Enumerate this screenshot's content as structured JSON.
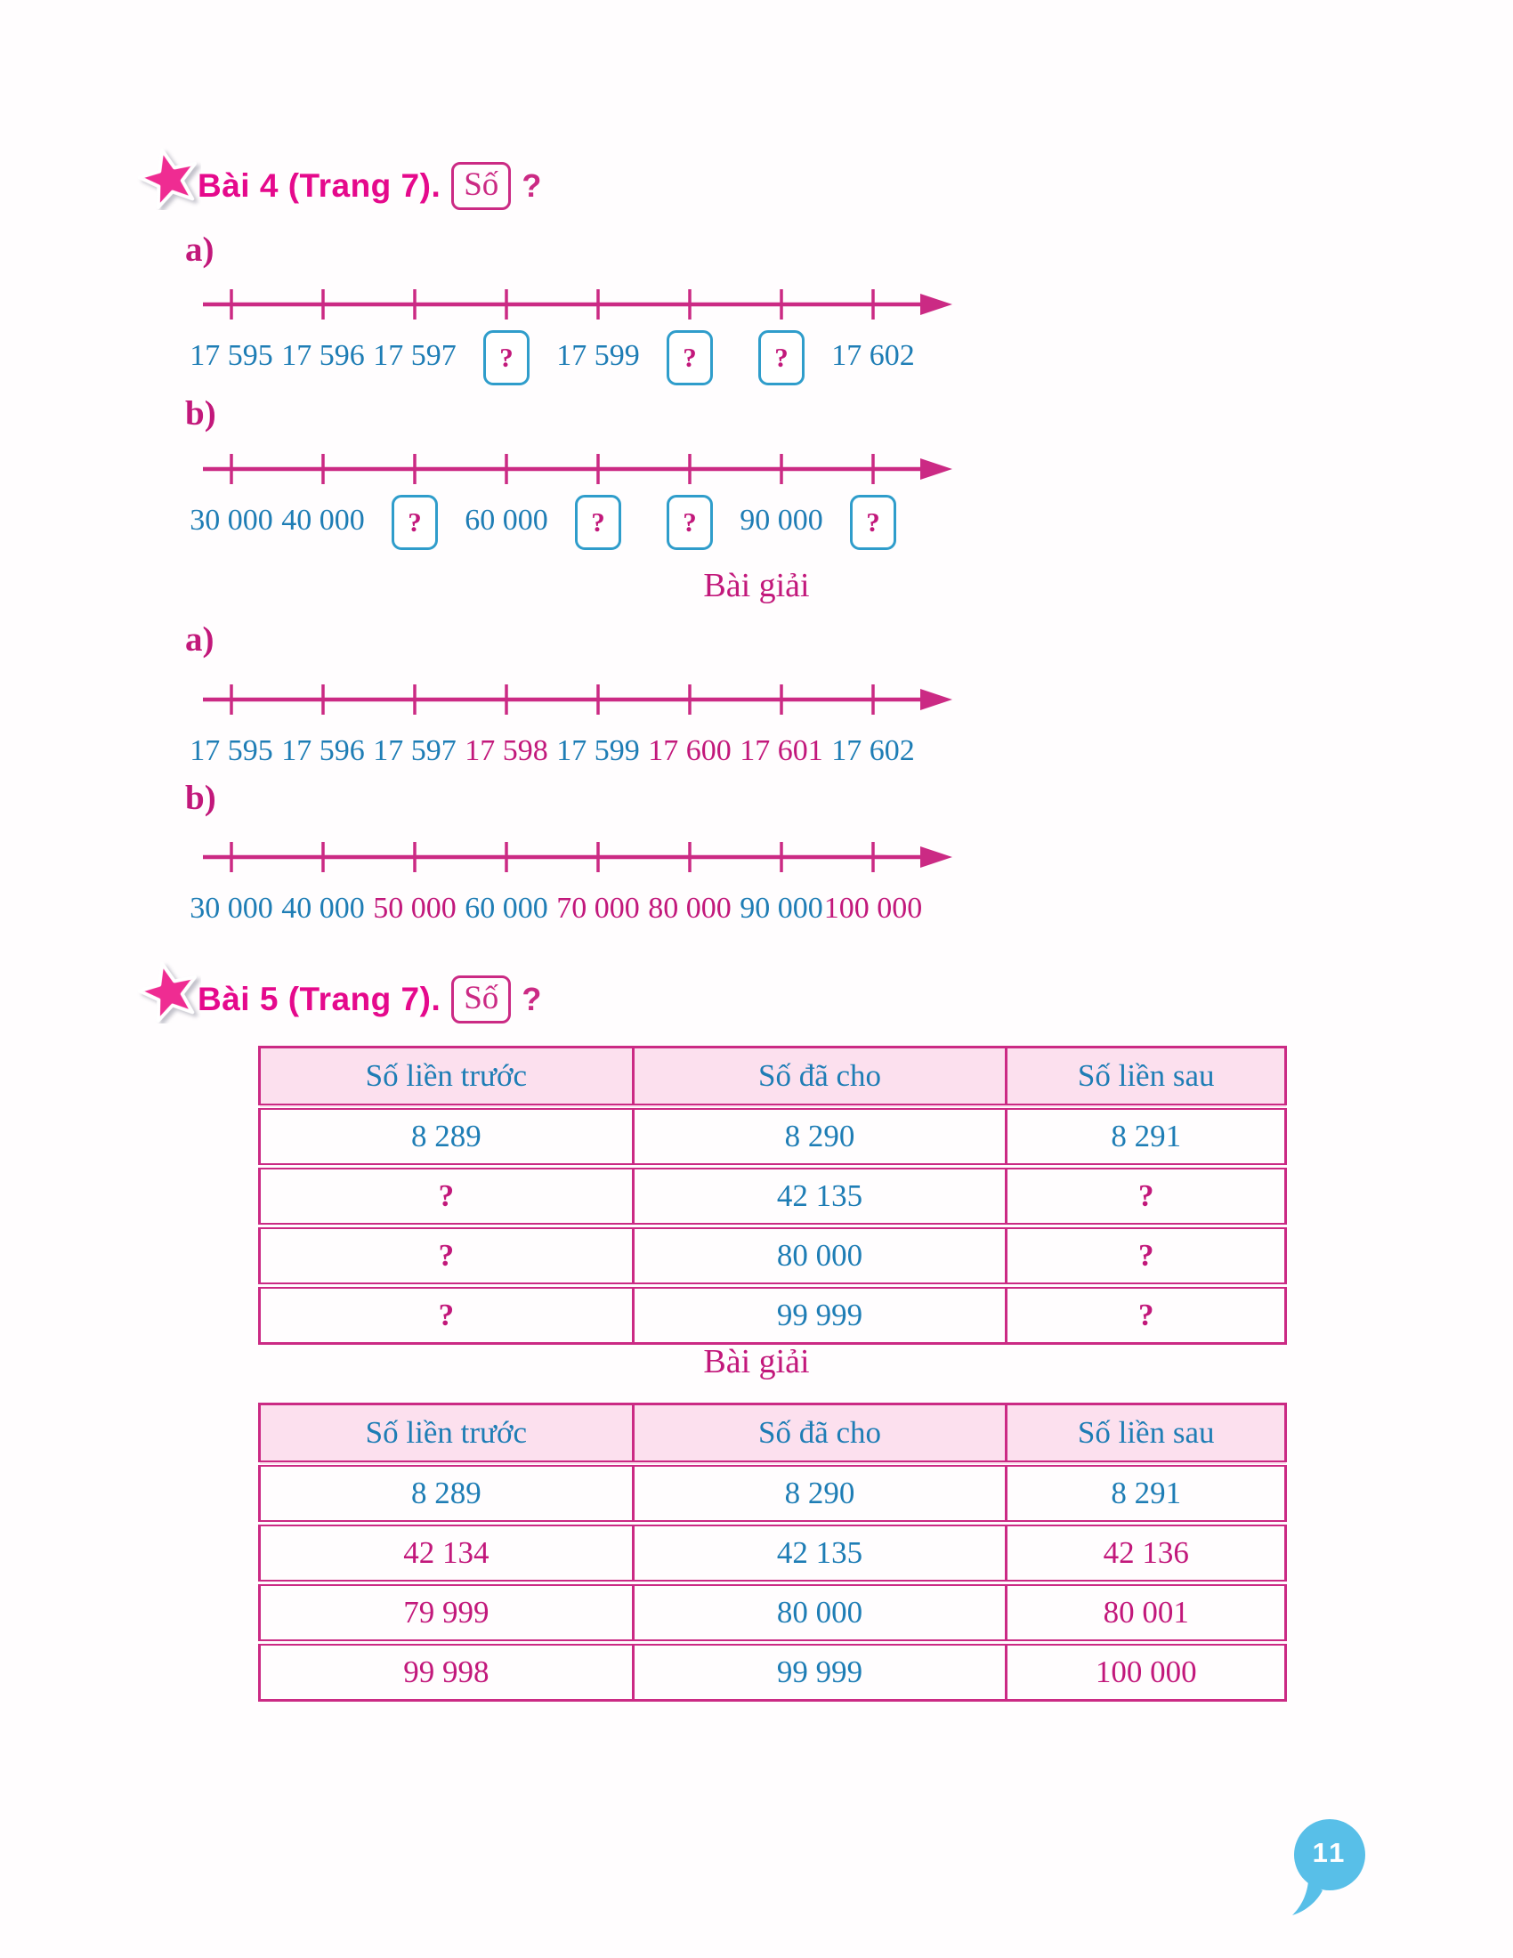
{
  "page": {
    "number": "11"
  },
  "colors": {
    "line_magenta": "#CB2A84",
    "answer_magenta": "#C2187B",
    "title_pink": "#E5098C",
    "star_pink": "#EF2C92",
    "given_blue": "#1E7DB5",
    "box_border_blue": "#2F9DCB",
    "table_header_bg": "#FCE0EE",
    "bubble_blue": "#58BFE8"
  },
  "exercise4": {
    "title": "Bài 4 (Trang 7).",
    "so_label": "Số",
    "question_mark": "?",
    "problem_lines": [
      {
        "part": "a)",
        "labels": [
          {
            "text": "17 595",
            "style": "given"
          },
          {
            "text": "17 596",
            "style": "given"
          },
          {
            "text": "17 597",
            "style": "given"
          },
          {
            "text": "?",
            "style": "box"
          },
          {
            "text": "17 599",
            "style": "given"
          },
          {
            "text": "?",
            "style": "box"
          },
          {
            "text": "?",
            "style": "box"
          },
          {
            "text": "17 602",
            "style": "given"
          }
        ]
      },
      {
        "part": "b)",
        "labels": [
          {
            "text": "30 000",
            "style": "given"
          },
          {
            "text": "40 000",
            "style": "given"
          },
          {
            "text": "?",
            "style": "box"
          },
          {
            "text": "60 000",
            "style": "given"
          },
          {
            "text": "?",
            "style": "box"
          },
          {
            "text": "?",
            "style": "box"
          },
          {
            "text": "90 000",
            "style": "given"
          },
          {
            "text": "?",
            "style": "box"
          }
        ]
      }
    ],
    "solution_heading": "Bài giải",
    "solution_lines": [
      {
        "part": "a)",
        "labels": [
          {
            "text": "17 595",
            "style": "given"
          },
          {
            "text": "17 596",
            "style": "given"
          },
          {
            "text": "17 597",
            "style": "given"
          },
          {
            "text": "17 598",
            "style": "answer"
          },
          {
            "text": "17 599",
            "style": "given"
          },
          {
            "text": "17 600",
            "style": "answer"
          },
          {
            "text": "17 601",
            "style": "answer"
          },
          {
            "text": "17 602",
            "style": "given"
          }
        ]
      },
      {
        "part": "b)",
        "labels": [
          {
            "text": "30 000",
            "style": "given"
          },
          {
            "text": "40 000",
            "style": "given"
          },
          {
            "text": "50 000",
            "style": "answer"
          },
          {
            "text": "60 000",
            "style": "given"
          },
          {
            "text": "70 000",
            "style": "answer"
          },
          {
            "text": "80 000",
            "style": "answer"
          },
          {
            "text": "90 000",
            "style": "given"
          },
          {
            "text": "100 000",
            "style": "answer"
          }
        ]
      }
    ]
  },
  "exercise5": {
    "title": "Bài 5 (Trang 7).",
    "so_label": "Số",
    "question_mark": "?",
    "problem_table": {
      "headers": [
        "Số liền trước",
        "Số đã cho",
        "Số liền sau"
      ],
      "rows": [
        [
          {
            "text": "8 289",
            "style": "given"
          },
          {
            "text": "8 290",
            "style": "given"
          },
          {
            "text": "8 291",
            "style": "given"
          }
        ],
        [
          {
            "text": "?",
            "style": "question"
          },
          {
            "text": "42 135",
            "style": "given"
          },
          {
            "text": "?",
            "style": "question"
          }
        ],
        [
          {
            "text": "?",
            "style": "question"
          },
          {
            "text": "80 000",
            "style": "given"
          },
          {
            "text": "?",
            "style": "question"
          }
        ],
        [
          {
            "text": "?",
            "style": "question"
          },
          {
            "text": "99 999",
            "style": "given"
          },
          {
            "text": "?",
            "style": "question"
          }
        ]
      ]
    },
    "solution_heading": "Bài giải",
    "solution_table": {
      "headers": [
        "Số liền trước",
        "Số đã cho",
        "Số liền sau"
      ],
      "rows": [
        [
          {
            "text": "8 289",
            "style": "given"
          },
          {
            "text": "8 290",
            "style": "given"
          },
          {
            "text": "8 291",
            "style": "given"
          }
        ],
        [
          {
            "text": "42 134",
            "style": "answer"
          },
          {
            "text": "42 135",
            "style": "given"
          },
          {
            "text": "42 136",
            "style": "answer"
          }
        ],
        [
          {
            "text": "79 999",
            "style": "answer"
          },
          {
            "text": "80 000",
            "style": "given"
          },
          {
            "text": "80 001",
            "style": "answer"
          }
        ],
        [
          {
            "text": "99 998",
            "style": "answer"
          },
          {
            "text": "99 999",
            "style": "given"
          },
          {
            "text": "100 000",
            "style": "answer"
          }
        ]
      ]
    }
  }
}
